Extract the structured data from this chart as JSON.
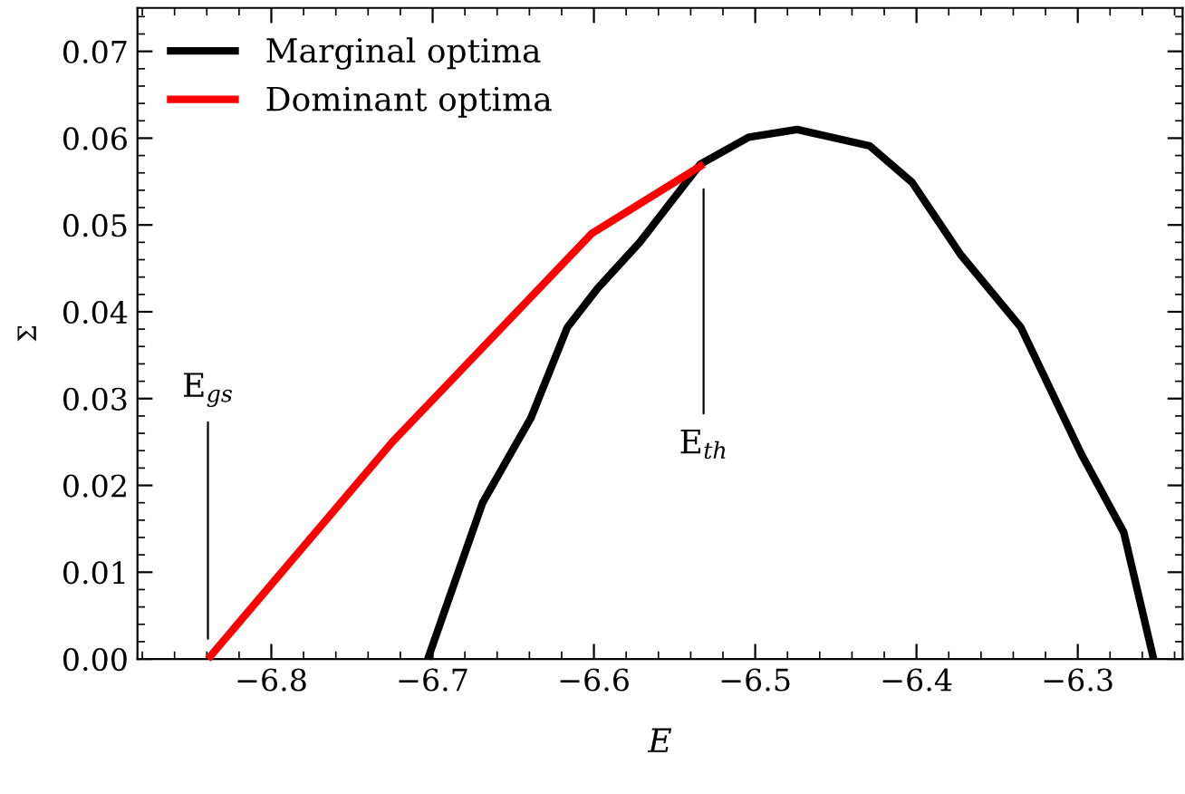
{
  "chart_data": {
    "type": "line",
    "xlabel": "E",
    "ylabel": "Σ",
    "series": [
      {
        "name": "Marginal optima",
        "color": "#000000",
        "x": [
          -6.703,
          -6.6913,
          -6.669,
          -6.639,
          -6.6165,
          -6.5977,
          -6.5716,
          -6.534,
          -6.504,
          -6.474,
          -6.4289,
          -6.4027,
          -6.3727,
          -6.3353,
          -6.2978,
          -6.2715,
          -6.253
        ],
        "values": [
          0,
          0.0062,
          0.018,
          0.0278,
          0.0382,
          0.0427,
          0.048,
          0.057,
          0.0601,
          0.061,
          0.0591,
          0.0549,
          0.0466,
          0.0382,
          0.0236,
          0.0146,
          0
        ]
      },
      {
        "name": "Dominant optima",
        "color": "#ff0000",
        "x": [
          -6.8393,
          -6.725,
          -6.6015,
          -6.532
        ],
        "values": [
          0,
          0.025,
          0.049,
          0.057
        ]
      }
    ],
    "xlim": [
      -6.883,
      -6.235
    ],
    "ylim": [
      0,
      0.075
    ],
    "xticks": [
      {
        "value": -6.8,
        "label": "−6.8"
      },
      {
        "value": -6.7,
        "label": "−6.7"
      },
      {
        "value": -6.6,
        "label": "−6.6"
      },
      {
        "value": -6.5,
        "label": "−6.5"
      },
      {
        "value": -6.4,
        "label": "−6.4"
      },
      {
        "value": -6.3,
        "label": "−6.3"
      }
    ],
    "yticks": [
      {
        "value": 0,
        "label": "0.00"
      },
      {
        "value": 0.01,
        "label": "0.01"
      },
      {
        "value": 0.02,
        "label": "0.02"
      },
      {
        "value": 0.03,
        "label": "0.03"
      },
      {
        "value": 0.04,
        "label": "0.04"
      },
      {
        "value": 0.05,
        "label": "0.05"
      },
      {
        "value": 0.06,
        "label": "0.06"
      },
      {
        "value": 0.07,
        "label": "0.07"
      }
    ],
    "annotations": [
      "E$_{gs}$",
      "E$_{th}$"
    ],
    "legend": "top left",
    "grid": false,
    "marker": "none",
    "line_style": "solid"
  }
}
